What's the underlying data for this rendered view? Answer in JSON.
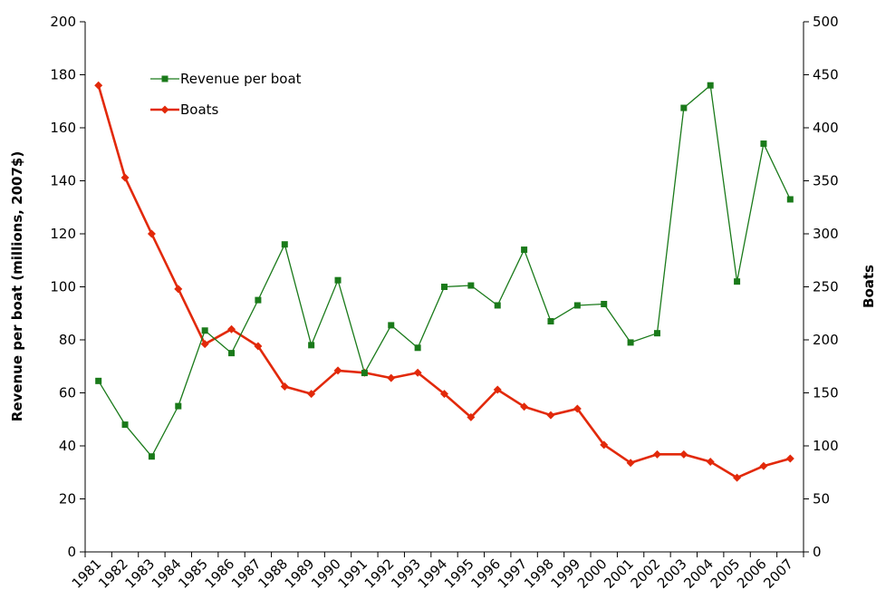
{
  "chart_data": {
    "type": "line",
    "title": "",
    "x": [
      "1981",
      "1982",
      "1983",
      "1984",
      "1985",
      "1986",
      "1987",
      "1988",
      "1989",
      "1990",
      "1991",
      "1992",
      "1993",
      "1994",
      "1995",
      "1996",
      "1997",
      "1998",
      "1999",
      "2000",
      "2001",
      "2002",
      "2003",
      "2004",
      "2005",
      "2006",
      "2007"
    ],
    "xlabel": "",
    "ylabel_left": "Revenue per boat (millions, 2007$)",
    "ylabel_right": "Boats",
    "ylim_left": [
      0,
      200
    ],
    "ylim_right": [
      0,
      500
    ],
    "yticks_left": [
      0,
      20,
      40,
      60,
      80,
      100,
      120,
      140,
      160,
      180,
      200
    ],
    "yticks_right": [
      0,
      50,
      100,
      150,
      200,
      250,
      300,
      350,
      400,
      450,
      500
    ],
    "grid": false,
    "legend": "upper-left",
    "series": [
      {
        "name": "Revenue per boat",
        "axis": "left",
        "color": "#1a7a1a",
        "marker": "square",
        "values": [
          64.5,
          48,
          36,
          55,
          83.5,
          75,
          95,
          116,
          78,
          102.5,
          67.5,
          85.5,
          77,
          100,
          100.5,
          93,
          114,
          87,
          93,
          93.5,
          79,
          82.5,
          167.5,
          176,
          102,
          154,
          133
        ]
      },
      {
        "name": "Boats",
        "axis": "right",
        "color": "#e2290a",
        "marker": "diamond",
        "values": [
          440,
          353,
          300,
          248,
          196,
          210,
          194,
          156,
          149,
          171,
          169,
          164,
          169,
          149,
          127,
          153,
          137,
          129,
          135,
          101,
          84,
          92,
          92,
          85,
          70,
          81,
          88
        ]
      }
    ]
  }
}
